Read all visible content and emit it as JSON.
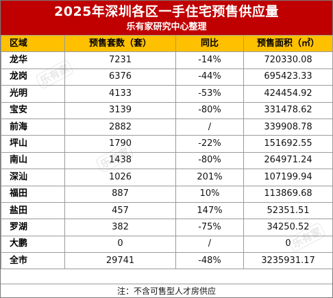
{
  "header": {
    "title": "2025年深圳各区一手住宅预售供应量",
    "subtitle": "乐有家研究中心整理"
  },
  "columns": [
    "区域",
    "预售套数（套）",
    "同比",
    "预售面积（㎡）"
  ],
  "rows": [
    {
      "district": "龙华",
      "units": "7231",
      "yoy": "-14%",
      "area": "720330.08"
    },
    {
      "district": "龙岗",
      "units": "6376",
      "yoy": "-44%",
      "area": "695423.33"
    },
    {
      "district": "光明",
      "units": "4133",
      "yoy": "-53%",
      "area": "424454.92"
    },
    {
      "district": "宝安",
      "units": "3139",
      "yoy": "-80%",
      "area": "331478.62"
    },
    {
      "district": "前海",
      "units": "2882",
      "yoy": "/",
      "area": "339908.78"
    },
    {
      "district": "坪山",
      "units": "1790",
      "yoy": "-22%",
      "area": "151692.55"
    },
    {
      "district": "南山",
      "units": "1438",
      "yoy": "-80%",
      "area": "264971.24"
    },
    {
      "district": "深汕",
      "units": "1026",
      "yoy": "201%",
      "area": "107199.94"
    },
    {
      "district": "福田",
      "units": "887",
      "yoy": "10%",
      "area": "113869.68"
    },
    {
      "district": "盐田",
      "units": "457",
      "yoy": "147%",
      "area": "52351.51"
    },
    {
      "district": "罗湖",
      "units": "382",
      "yoy": "-75%",
      "area": "34250.52"
    },
    {
      "district": "大鹏",
      "units": "0",
      "yoy": "/",
      "area": "0"
    },
    {
      "district": "全市",
      "units": "29741",
      "yoy": "-48%",
      "area": "3235931.17"
    }
  ],
  "note": "注：不含可售型人才房供应",
  "watermark": "乐有家",
  "colors": {
    "title_band": "#c00000",
    "header_row": "#ffc000",
    "grid": "#9a9a9a"
  }
}
